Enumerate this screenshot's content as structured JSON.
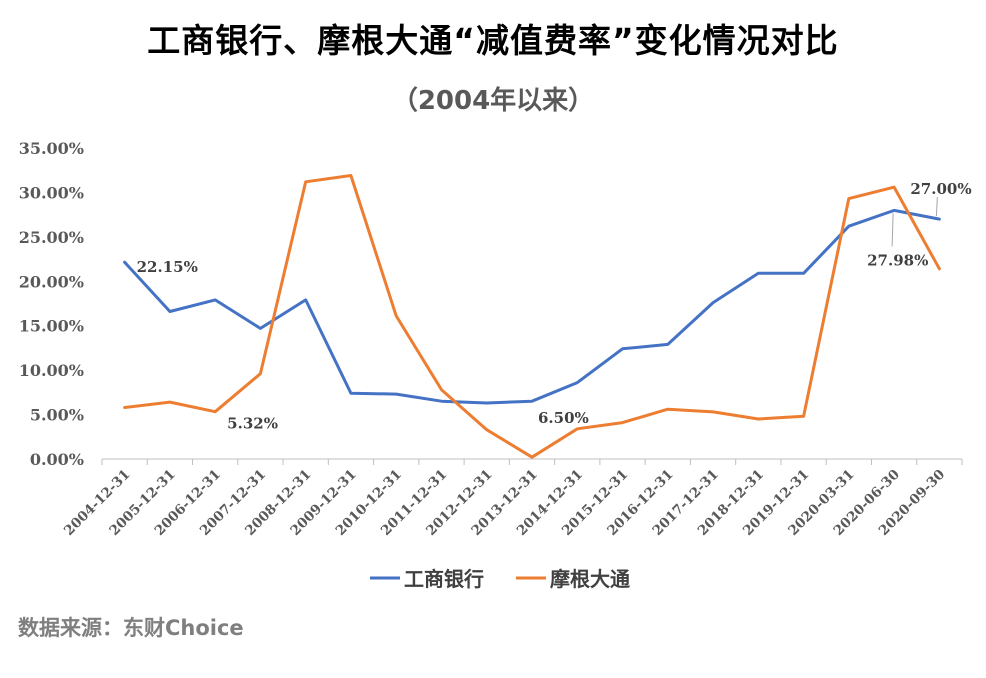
{
  "title": "工商银行、摩根大通“减值费率”变化情况对比",
  "subtitle": "（2004年以来）",
  "source": "数据来源：东财Choice",
  "chart_data": {
    "type": "line",
    "x": [
      "2004-12-31",
      "2005-12-31",
      "2006-12-31",
      "2007-12-31",
      "2008-12-31",
      "2009-12-31",
      "2010-12-31",
      "2011-12-31",
      "2012-12-31",
      "2013-12-31",
      "2014-12-31",
      "2015-12-31",
      "2016-12-31",
      "2017-12-31",
      "2018-12-31",
      "2019-12-31",
      "2020-03-31",
      "2020-06-30",
      "2020-09-30"
    ],
    "yticks": [
      "0.00%",
      "5.00%",
      "10.00%",
      "15.00%",
      "20.00%",
      "25.00%",
      "30.00%",
      "35.00%"
    ],
    "ylim": [
      0,
      35
    ],
    "grid": false,
    "legend_position": "bottom",
    "series": [
      {
        "name": "工商银行",
        "color": "#4472c4",
        "values": [
          22.15,
          16.6,
          17.9,
          14.7,
          17.9,
          7.4,
          7.3,
          6.5,
          6.3,
          6.5,
          8.6,
          12.4,
          12.9,
          17.6,
          20.9,
          20.9,
          26.2,
          27.98,
          27.0
        ]
      },
      {
        "name": "摩根大通",
        "color": "#ed7d31",
        "values": [
          5.8,
          6.4,
          5.32,
          9.6,
          31.2,
          31.9,
          16.1,
          7.8,
          3.3,
          0.2,
          3.4,
          4.1,
          5.6,
          5.3,
          4.5,
          4.8,
          29.3,
          30.6,
          21.4
        ]
      }
    ],
    "annotations": [
      {
        "series": 0,
        "index": 0,
        "text": "22.15%"
      },
      {
        "series": 1,
        "index": 2,
        "text": "5.32%"
      },
      {
        "series": 0,
        "index": 9,
        "text": "6.50%"
      },
      {
        "series": 0,
        "index": 17,
        "text": "27.98%"
      },
      {
        "series": 0,
        "index": 18,
        "text": "27.00%"
      }
    ]
  }
}
